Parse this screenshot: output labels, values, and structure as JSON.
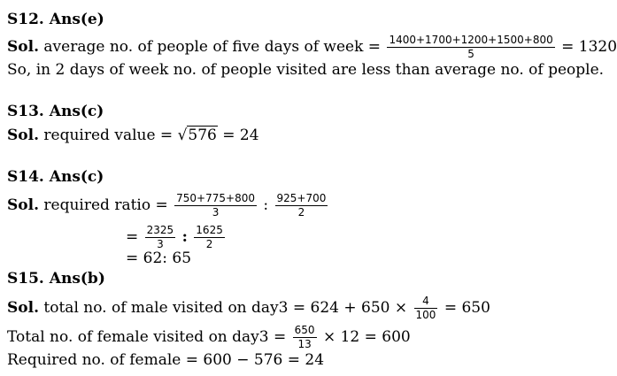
{
  "s12": {
    "heading": "S12. Ans(e)",
    "sol_label": "Sol.",
    "text": "average no. of people of five days of week =",
    "num": "1400+1700+1200+1500+800",
    "den": "5",
    "result": "= 1320",
    "line2": "So, in 2 days of week no. of people visited are less than average no. of people."
  },
  "s13": {
    "heading": "S13. Ans(c)",
    "sol_label": "Sol.",
    "text": "required value =",
    "sqrt_sign": "√",
    "radicand": "576",
    "result": "= 24"
  },
  "s14": {
    "heading": "S14. Ans(c)",
    "sol_label": "Sol.",
    "text": "required ratio =",
    "f1_num": "750+775+800",
    "f1_den": "3",
    "colon": ":",
    "f2_num": "925+700",
    "f2_den": "2",
    "eq2": "=",
    "g1_num": "2325",
    "g1_den": "3",
    "g2_num": "1625",
    "g2_den": "2",
    "line3": "= 62: 65"
  },
  "s15": {
    "heading": "S15. Ans(b)",
    "sol_label": "Sol.",
    "text1": "total no. of male visited on day3 = 624 + 650 ×",
    "f_num": "4",
    "f_den": "100",
    "result1": "= 650",
    "text2": "Total no. of female visited on day3 =",
    "f2_num": "650",
    "f2_den": "13",
    "result2": "× 12 = 600",
    "line3": "Required no. of female = 600 − 576 = 24"
  }
}
